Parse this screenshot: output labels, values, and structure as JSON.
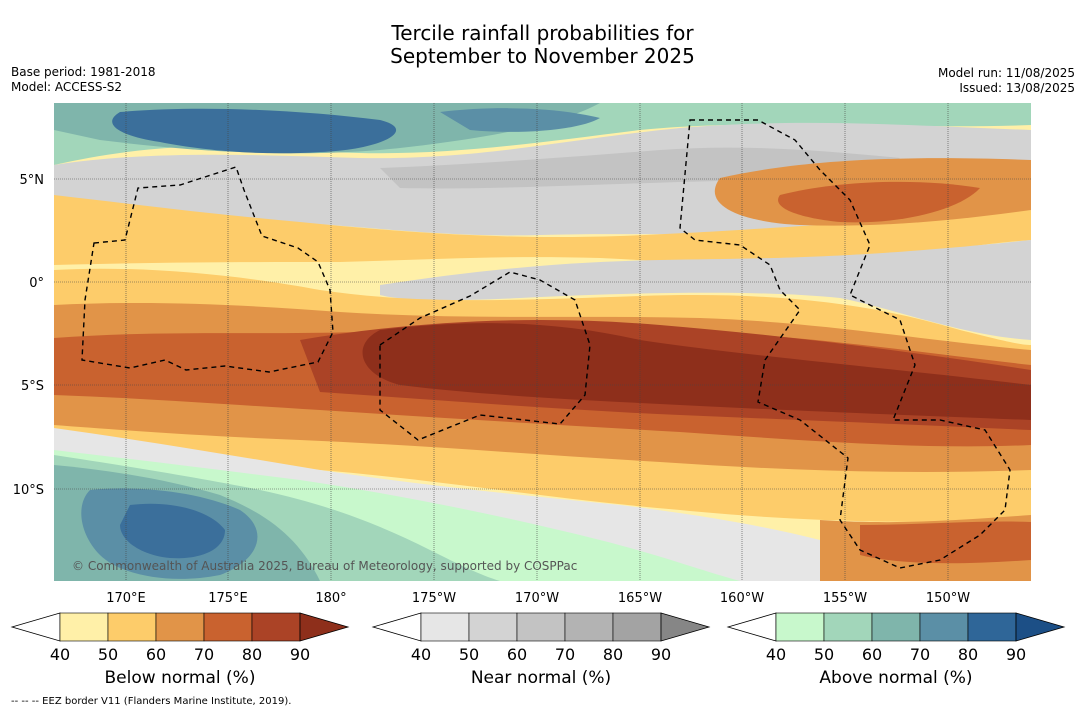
{
  "title_line1": "Tercile rainfall probabilities for",
  "title_line2": "September to November 2025",
  "base_period": "Base period: 1981-2018",
  "model": "Model: ACCESS-S2",
  "model_run": "Model run: 11/08/2025",
  "issued": "Issued: 13/08/2025",
  "copyright": "© Commonwealth of Australia 2025, Bureau of Meteorology, supported by COSPPac",
  "footer": "--  --  -- EEZ border V11 (Flanders Marine Institute, 2019).",
  "lat_labels": [
    "5°N",
    "0°",
    "5°S",
    "10°S"
  ],
  "lon_labels": [
    "170°E",
    "175°E",
    "180°",
    "175°W",
    "170°W",
    "165°W",
    "160°W",
    "155°W",
    "150°W"
  ],
  "colorbars": [
    {
      "name": "Below normal (%)",
      "ticks": [
        "40",
        "50",
        "60",
        "70",
        "80",
        "90"
      ],
      "colors": [
        "#fff0a8",
        "#fdcc6a",
        "#e19448",
        "#c9622f",
        "#ab4326",
        "#8e2f1b"
      ]
    },
    {
      "name": "Near normal (%)",
      "ticks": [
        "40",
        "50",
        "60",
        "70",
        "80",
        "90"
      ],
      "colors": [
        "#e6e6e6",
        "#d3d3d3",
        "#c3c3c3",
        "#b3b3b3",
        "#a3a3a3",
        "#868686"
      ]
    },
    {
      "name": "Above normal (%)",
      "ticks": [
        "40",
        "50",
        "60",
        "70",
        "80",
        "90"
      ],
      "colors": [
        "#c8f8cc",
        "#a2d6ba",
        "#7fb5ab",
        "#5b8fa6",
        "#2f6698",
        "#1c4f86"
      ]
    }
  ]
}
